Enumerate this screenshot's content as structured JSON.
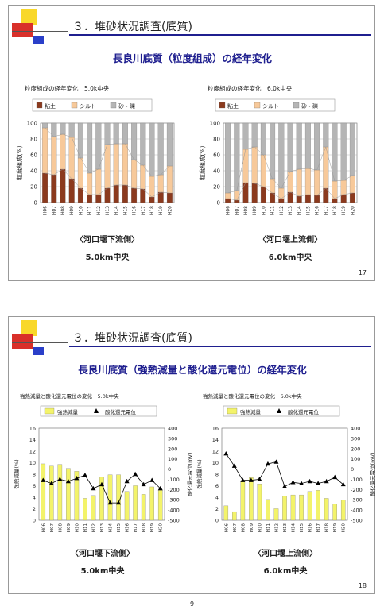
{
  "slides": [
    {
      "heading": "３．堆砂状況調査(底質)",
      "subtitle": "長良川底質（粒度組成）の経年変化",
      "page_number": "17",
      "charts": [
        {
          "title": "粒度組成の経年変化　5.0k中央",
          "location": "〈河口堰下流側〉",
          "station": "5.0km中央"
        },
        {
          "title": "粒度組成の経年変化　6.0k中央",
          "location": "〈河口堰上流側〉",
          "station": "6.0km中央"
        }
      ]
    },
    {
      "heading": "３．堆砂状況調査(底質)",
      "subtitle": "長良川底質（強熱減量と酸化還元電位）の経年変化",
      "page_number": "18",
      "charts": [
        {
          "title": "強熱減量と酸化還元電位の変化　5.0k中央",
          "location": "〈河口堰下流側〉",
          "station": "5.0km中央"
        },
        {
          "title": "強熱減量と酸化還元電位の変化　6.0k中央",
          "location": "〈河口堰上流側〉",
          "station": "6.0km中央"
        }
      ]
    }
  ],
  "colors": {
    "clay": "#8b3a1e",
    "silt": "#f7c99a",
    "sand": "#b5b5b5",
    "ignition": "#f3f36a",
    "orp": "#000000",
    "heading_bar": "#1f1f8f",
    "deco_yellow": "#f9d82a",
    "deco_red": "#d9302a",
    "deco_blue": "#2a3fc9"
  },
  "footer_page": "9",
  "chart_data": [
    {
      "type": "bar",
      "stacked": true,
      "categories": [
        "H06",
        "H07",
        "H08",
        "H09",
        "H10",
        "H11",
        "H12",
        "H13",
        "H14",
        "H15",
        "H16",
        "H17",
        "H18",
        "H19",
        "H20"
      ],
      "series": [
        {
          "name": "粘土",
          "values": [
            37,
            35,
            42,
            30,
            18,
            10,
            10,
            18,
            22,
            22,
            18,
            17,
            7,
            13,
            12
          ]
        },
        {
          "name": "シルト",
          "values": [
            57,
            48,
            44,
            52,
            38,
            27,
            32,
            55,
            52,
            52,
            36,
            30,
            26,
            22,
            34
          ]
        },
        {
          "name": "砂・礫",
          "values": [
            6,
            17,
            14,
            18,
            44,
            63,
            58,
            27,
            26,
            26,
            46,
            53,
            67,
            65,
            54
          ]
        }
      ],
      "ylabel": "粒度組成(%)",
      "ylim": [
        0,
        100
      ],
      "yticks": [
        0,
        20,
        40,
        60,
        80,
        100
      ],
      "legend": "top-left"
    },
    {
      "type": "bar",
      "stacked": true,
      "categories": [
        "H06",
        "H07",
        "H08",
        "H09",
        "H10",
        "H11",
        "H12",
        "H13",
        "H14",
        "H15",
        "H16",
        "H17",
        "H18",
        "H19",
        "H20"
      ],
      "series": [
        {
          "name": "粘土",
          "values": [
            5,
            3,
            25,
            24,
            20,
            12,
            5,
            13,
            8,
            10,
            9,
            18,
            5,
            10,
            12
          ]
        },
        {
          "name": "シルト",
          "values": [
            7,
            12,
            42,
            46,
            40,
            18,
            13,
            26,
            34,
            33,
            32,
            52,
            22,
            18,
            22
          ]
        },
        {
          "name": "砂・礫",
          "values": [
            88,
            85,
            33,
            30,
            40,
            70,
            82,
            61,
            58,
            57,
            59,
            30,
            73,
            72,
            66
          ]
        }
      ],
      "ylabel": "粒度組成(%)",
      "ylim": [
        0,
        100
      ],
      "yticks": [
        0,
        20,
        40,
        60,
        80,
        100
      ],
      "legend": "top-left"
    },
    {
      "type": "bar",
      "categories": [
        "H06",
        "H07",
        "H08",
        "H09",
        "H10",
        "H11",
        "H12",
        "H13",
        "H14",
        "H15",
        "H16",
        "H17",
        "H18",
        "H19",
        "H20"
      ],
      "series": [
        {
          "name": "強熱減量",
          "kind": "bar",
          "axis": "left",
          "values": [
            9.8,
            9.4,
            9.7,
            9.0,
            8.5,
            3.8,
            4.3,
            7.5,
            7.9,
            7.9,
            5.0,
            6.0,
            4.5,
            5.8,
            5.2
          ]
        },
        {
          "name": "酸化還元電位",
          "kind": "line",
          "axis": "right",
          "values": [
            -110,
            -140,
            -100,
            -120,
            -90,
            -60,
            -190,
            -150,
            -330,
            -330,
            -120,
            -50,
            -150,
            -110,
            -190
          ]
        }
      ],
      "ylabel": "強熱減量(%)",
      "ylim": [
        0,
        16
      ],
      "yticks": [
        0,
        2,
        4,
        6,
        8,
        10,
        12,
        14,
        16
      ],
      "y2label": "酸化還元電位(mV)",
      "y2lim": [
        -500,
        400
      ],
      "y2ticks": [
        -500,
        -400,
        -300,
        -200,
        -100,
        0,
        100,
        200,
        300,
        400
      ],
      "legend": "top-left"
    },
    {
      "type": "bar",
      "categories": [
        "H06",
        "H07",
        "H08",
        "H09",
        "H10",
        "H11",
        "H12",
        "H13",
        "H14",
        "H15",
        "H16",
        "H17",
        "H18",
        "H19",
        "H20"
      ],
      "series": [
        {
          "name": "強熱減量",
          "kind": "bar",
          "axis": "left",
          "values": [
            2.5,
            1.5,
            6.8,
            7.4,
            6.3,
            3.6,
            2.0,
            4.2,
            4.4,
            4.4,
            5.0,
            5.2,
            3.8,
            2.8,
            3.5
          ]
        },
        {
          "name": "酸化還元電位",
          "kind": "line",
          "axis": "right",
          "values": [
            150,
            30,
            -110,
            -110,
            -100,
            50,
            70,
            -170,
            -130,
            -140,
            -120,
            -140,
            -120,
            -80,
            -150
          ]
        }
      ],
      "ylabel": "強熱減量(%)",
      "ylim": [
        0,
        16
      ],
      "yticks": [
        0,
        2,
        4,
        6,
        8,
        10,
        12,
        14,
        16
      ],
      "y2label": "酸化還元電位(mV)",
      "y2lim": [
        -500,
        400
      ],
      "y2ticks": [
        -500,
        -400,
        -300,
        -200,
        -100,
        0,
        100,
        200,
        300,
        400
      ],
      "legend": "top-left"
    }
  ]
}
